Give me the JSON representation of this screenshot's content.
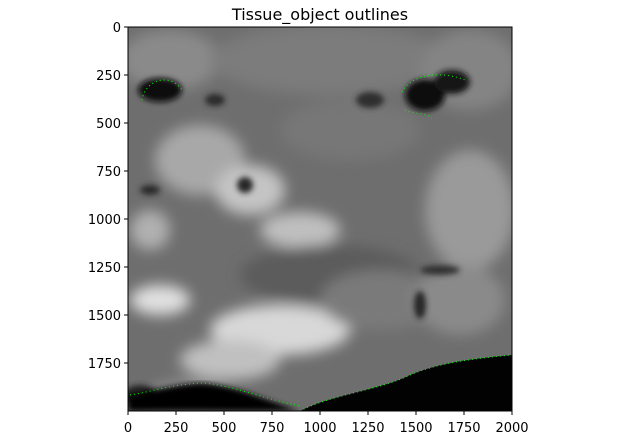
{
  "chart_data": {
    "type": "heatmap",
    "title": "Tissue_object outlines",
    "xlabel": "",
    "ylabel": "",
    "xlim": [
      0,
      2000
    ],
    "ylim": [
      2000,
      0
    ],
    "x_ticks": [
      "0",
      "250",
      "500",
      "750",
      "1000",
      "1250",
      "1500",
      "1750",
      "2000"
    ],
    "y_ticks": [
      "0",
      "250",
      "500",
      "750",
      "1000",
      "1250",
      "1500",
      "1750"
    ],
    "grid": false,
    "colormap": "gray",
    "outline_color": "#00ff00"
  }
}
